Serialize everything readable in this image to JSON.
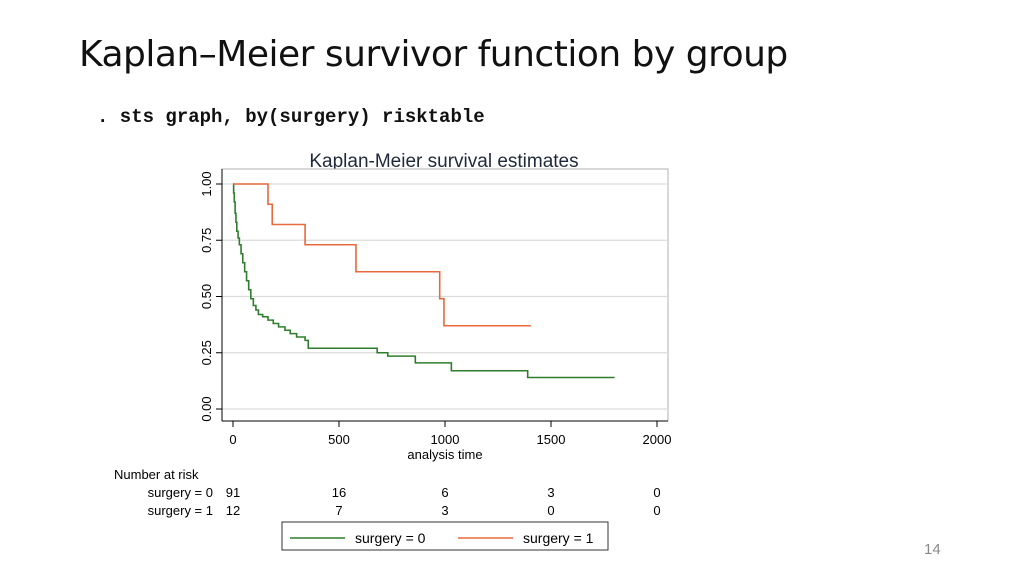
{
  "slide": {
    "title": "Kaplan–Meier survivor function by group",
    "command": ". sts graph, by(surgery) risktable",
    "page_number": "14"
  },
  "chart_data": {
    "type": "line",
    "title": "Kaplan-Meier survival estimates",
    "xlabel": "analysis time",
    "ylabel": "",
    "xlim": [
      0,
      2000
    ],
    "ylim": [
      0,
      1
    ],
    "x_ticks": [
      0,
      500,
      1000,
      1500,
      2000
    ],
    "x_tick_labels": [
      "0",
      "500",
      "1000",
      "1500",
      "2000"
    ],
    "y_ticks": [
      0,
      0.25,
      0.5,
      0.75,
      1
    ],
    "y_tick_labels": [
      "0.00",
      "0.25",
      "0.50",
      "0.75",
      "1.00"
    ],
    "grid": true,
    "legend_position": "bottom",
    "series": [
      {
        "name": "surgery = 0",
        "color": "#2e7d2e",
        "steps": [
          [
            0,
            1.0
          ],
          [
            3,
            0.96
          ],
          [
            6,
            0.92
          ],
          [
            10,
            0.87
          ],
          [
            14,
            0.83
          ],
          [
            18,
            0.79
          ],
          [
            24,
            0.76
          ],
          [
            30,
            0.73
          ],
          [
            38,
            0.69
          ],
          [
            46,
            0.65
          ],
          [
            55,
            0.61
          ],
          [
            64,
            0.57
          ],
          [
            74,
            0.53
          ],
          [
            84,
            0.49
          ],
          [
            96,
            0.46
          ],
          [
            108,
            0.44
          ],
          [
            120,
            0.42
          ],
          [
            140,
            0.41
          ],
          [
            165,
            0.395
          ],
          [
            190,
            0.38
          ],
          [
            215,
            0.365
          ],
          [
            245,
            0.35
          ],
          [
            270,
            0.335
          ],
          [
            300,
            0.32
          ],
          [
            340,
            0.305
          ],
          [
            355,
            0.27
          ],
          [
            680,
            0.25
          ],
          [
            730,
            0.235
          ],
          [
            860,
            0.205
          ],
          [
            1030,
            0.17
          ],
          [
            1390,
            0.14
          ],
          [
            1800,
            0.14
          ]
        ]
      },
      {
        "name": "surgery = 1",
        "color": "#e8693c",
        "steps": [
          [
            0,
            1.0
          ],
          [
            165,
            0.91
          ],
          [
            185,
            0.82
          ],
          [
            340,
            0.73
          ],
          [
            580,
            0.61
          ],
          [
            975,
            0.49
          ],
          [
            995,
            0.37
          ],
          [
            1405,
            0.37
          ]
        ]
      }
    ],
    "risk_table": {
      "title": "Number at risk",
      "times": [
        0,
        500,
        1000,
        1500,
        2000
      ],
      "rows": [
        {
          "label": "surgery = 0",
          "counts": [
            "91",
            "16",
            "6",
            "3",
            "0"
          ]
        },
        {
          "label": "surgery = 1",
          "counts": [
            "12",
            "7",
            "3",
            "0",
            "0"
          ]
        }
      ]
    }
  }
}
